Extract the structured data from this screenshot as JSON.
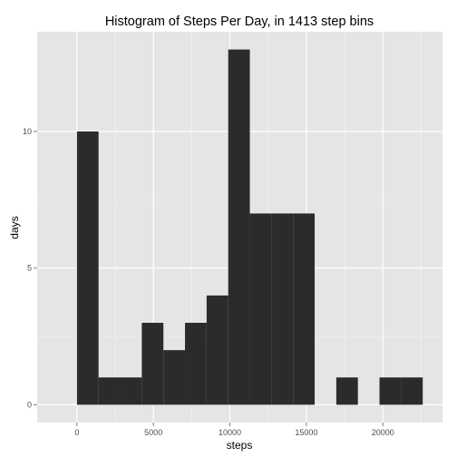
{
  "chart_data": {
    "type": "bar",
    "title": "Histogram of Steps Per Day, in 1413 step bins",
    "xlabel": "steps",
    "ylabel": "days",
    "bin_width": 1413,
    "bins": [
      {
        "start": 0,
        "end": 1413,
        "count": 10
      },
      {
        "start": 1413,
        "end": 2826,
        "count": 1
      },
      {
        "start": 2826,
        "end": 4239,
        "count": 1
      },
      {
        "start": 4239,
        "end": 5652,
        "count": 3
      },
      {
        "start": 5652,
        "end": 7065,
        "count": 2
      },
      {
        "start": 7065,
        "end": 8478,
        "count": 3
      },
      {
        "start": 8478,
        "end": 9891,
        "count": 4
      },
      {
        "start": 9891,
        "end": 11304,
        "count": 13
      },
      {
        "start": 11304,
        "end": 12717,
        "count": 7
      },
      {
        "start": 12717,
        "end": 14130,
        "count": 7
      },
      {
        "start": 14130,
        "end": 15543,
        "count": 7
      },
      {
        "start": 15543,
        "end": 16956,
        "count": 0
      },
      {
        "start": 16956,
        "end": 18369,
        "count": 1
      },
      {
        "start": 18369,
        "end": 19782,
        "count": 0
      },
      {
        "start": 19782,
        "end": 21195,
        "count": 1
      },
      {
        "start": 21195,
        "end": 22608,
        "count": 1
      }
    ],
    "x_ticks": [
      0,
      5000,
      10000,
      15000,
      20000
    ],
    "x_tick_labels": [
      "0",
      "5000",
      "10000",
      "15000",
      "20000"
    ],
    "y_ticks": [
      0,
      5,
      10
    ],
    "y_tick_labels": [
      "0",
      "5",
      "10"
    ],
    "xlim": [
      -2600,
      23900
    ],
    "ylim": [
      -0.65,
      13.65
    ],
    "grid": true,
    "colors": {
      "panel_background": "#e5e5e5",
      "grid_major": "#ffffff",
      "grid_minor": "#f2f2f2",
      "bar_fill": "#2b2b2b"
    }
  }
}
